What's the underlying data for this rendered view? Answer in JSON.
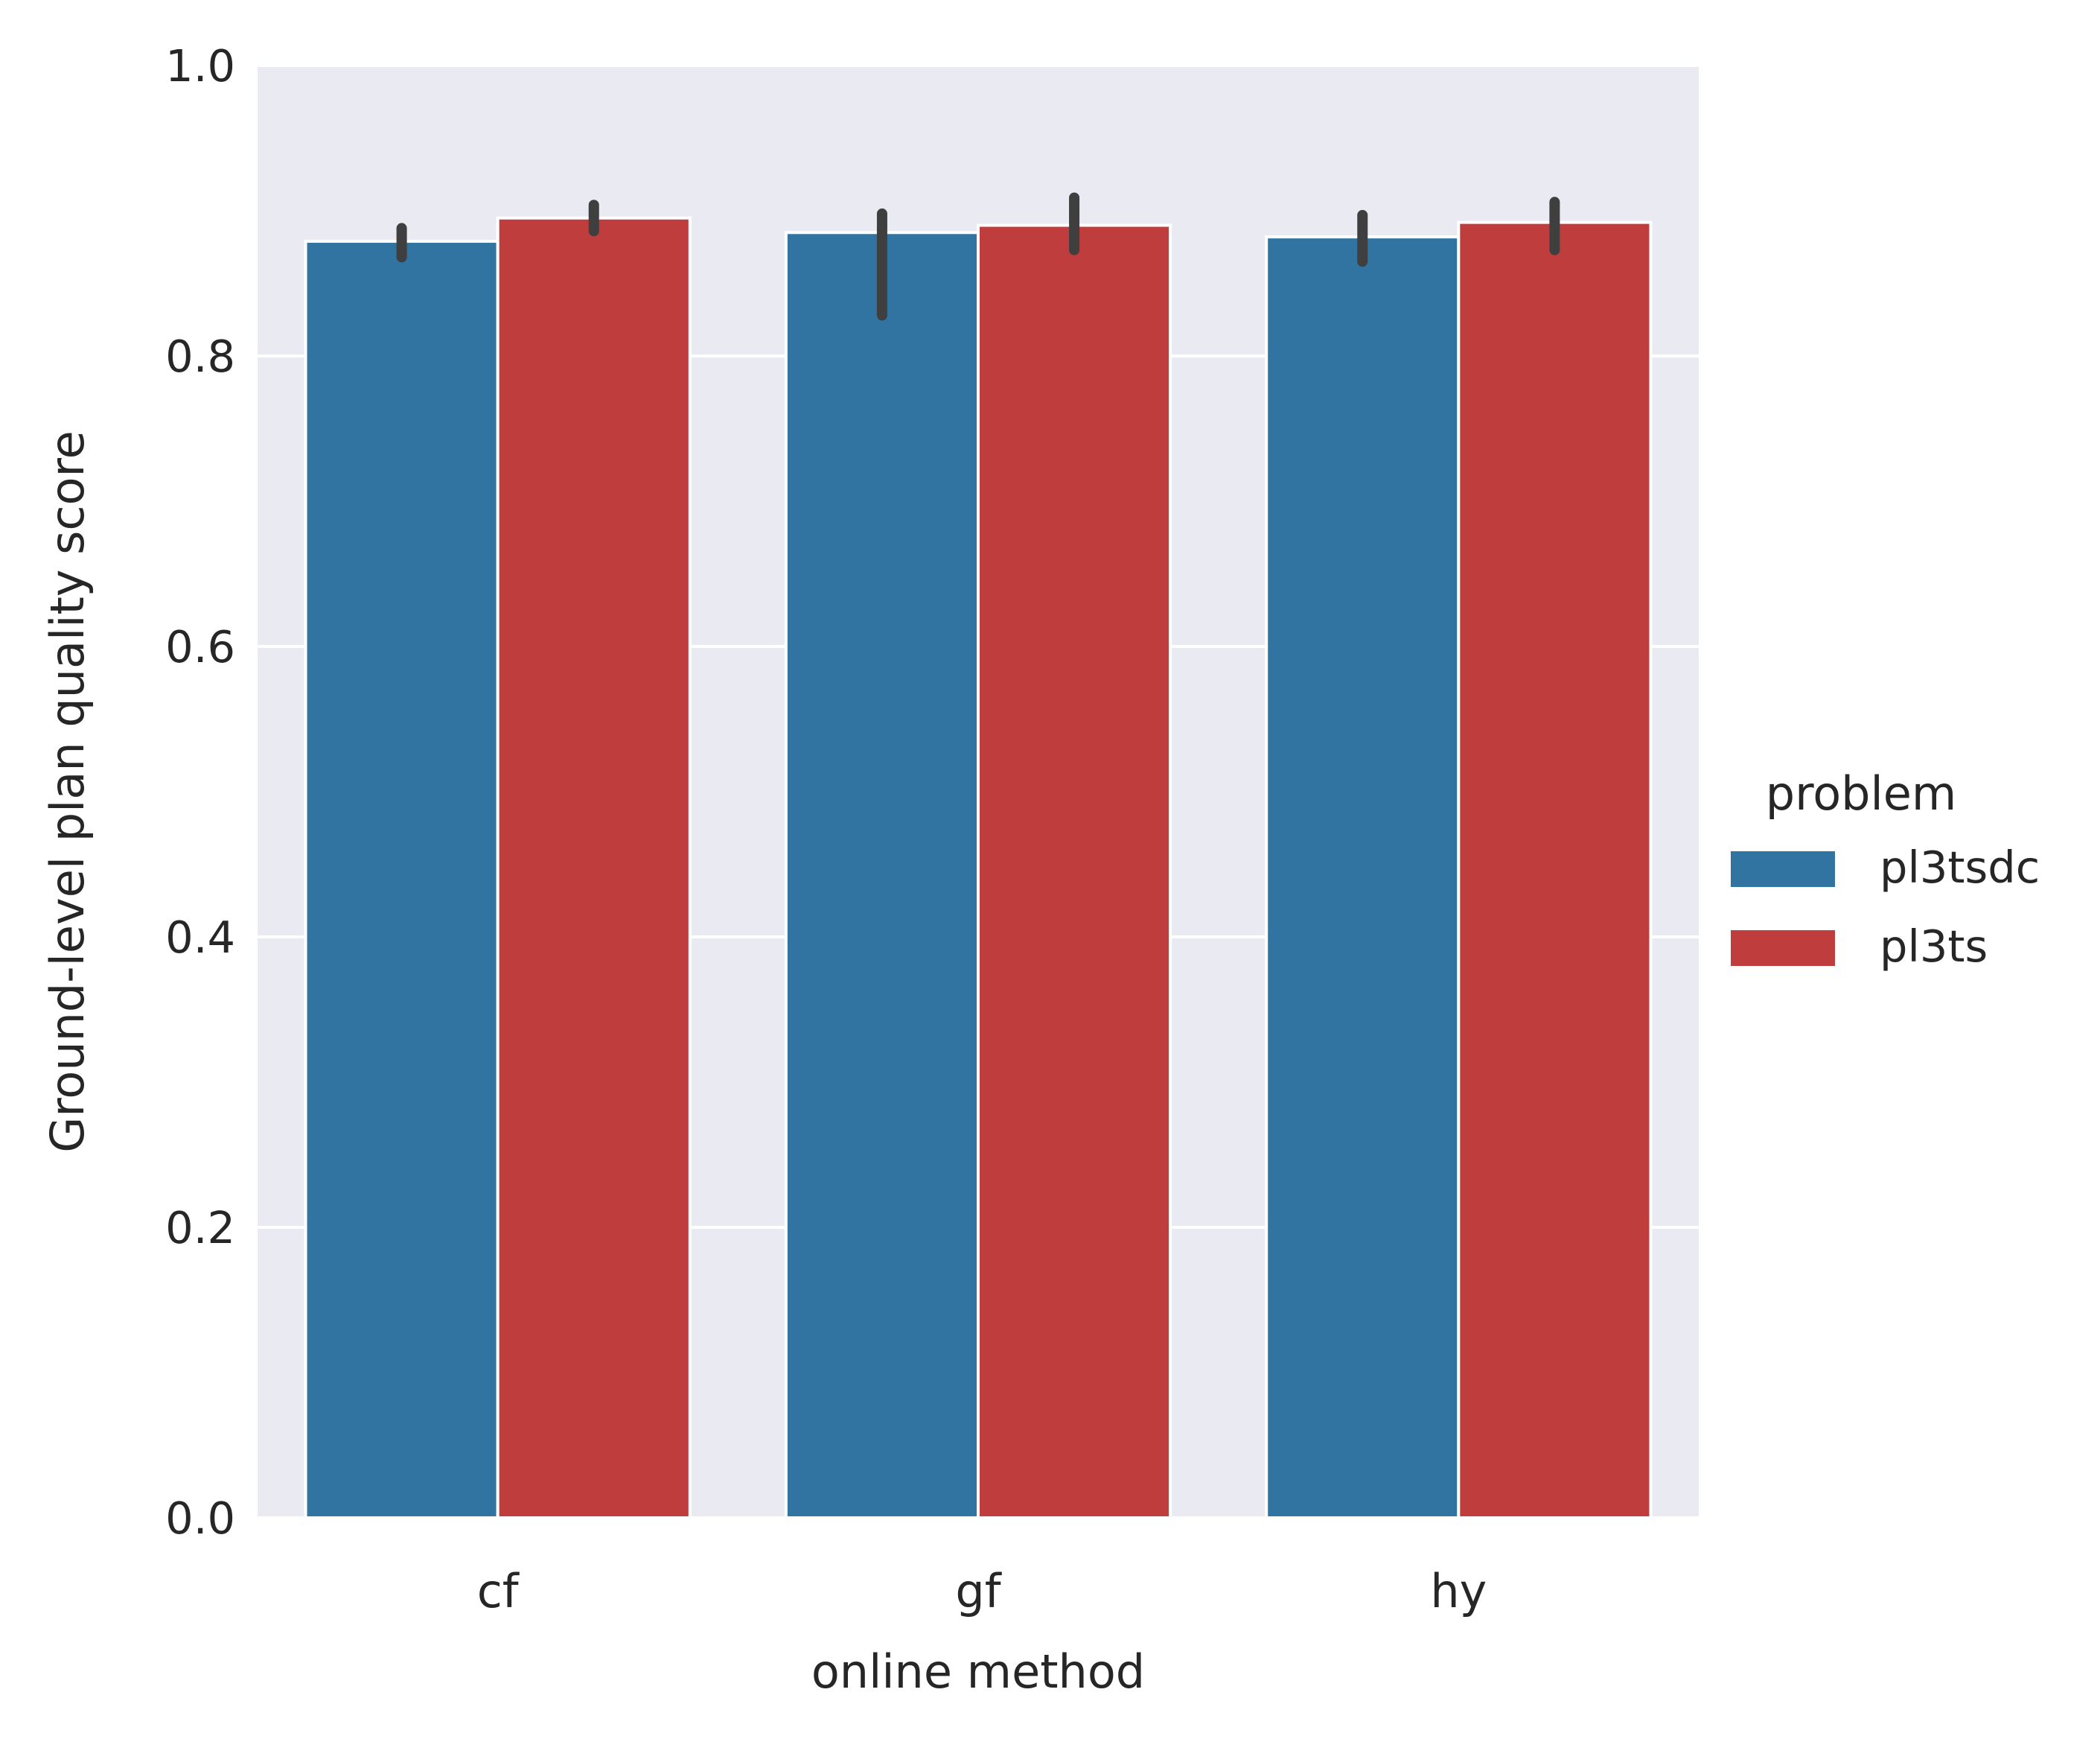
{
  "chart_data": {
    "type": "bar",
    "xlabel": "online method",
    "ylabel": "Ground-level plan quality score",
    "categories": [
      "cf",
      "gf",
      "hy"
    ],
    "ylim": [
      0.0,
      1.0
    ],
    "yticks": [
      "0.0",
      "0.2",
      "0.4",
      "0.6",
      "0.8",
      "1.0"
    ],
    "grid": true,
    "legend": {
      "title": "problem",
      "position": "right"
    },
    "series": [
      {
        "name": "pl3tsdc",
        "color": "#3274a1",
        "values": [
          0.879,
          0.885,
          0.882
        ],
        "error_low": [
          0.868,
          0.828,
          0.865
        ],
        "error_high": [
          0.888,
          0.898,
          0.897
        ]
      },
      {
        "name": "pl3ts",
        "color": "#c03d3e",
        "values": [
          0.895,
          0.89,
          0.892
        ],
        "error_low": [
          0.886,
          0.873,
          0.873
        ],
        "error_high": [
          0.904,
          0.909,
          0.906
        ]
      }
    ],
    "colors": {
      "background": "#eaeaf2",
      "grid": "#ffffff",
      "errorbar": "#3f3f3f"
    }
  }
}
